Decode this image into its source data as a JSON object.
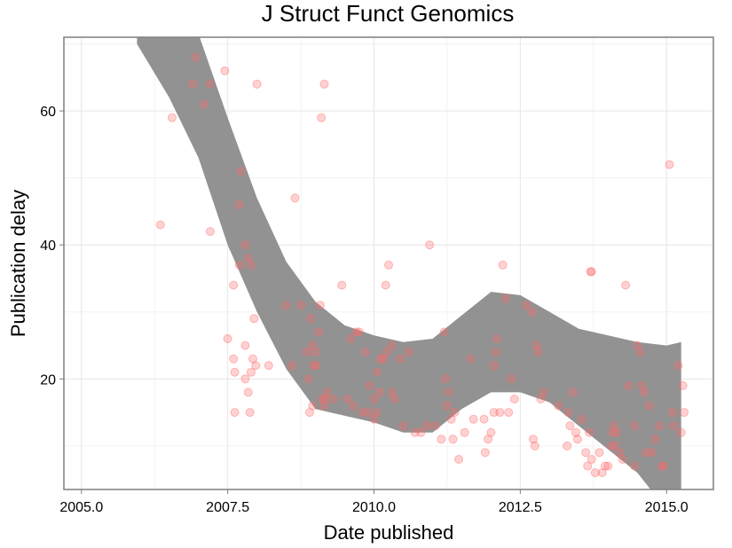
{
  "chart_data": {
    "type": "scatter",
    "title": "J Struct Funct Genomics",
    "xlabel": "Date published",
    "ylabel": "Publication delay",
    "xlim": [
      2004.7,
      2015.8
    ],
    "ylim": [
      3.5,
      71
    ],
    "x_ticks": [
      2005.0,
      2007.5,
      2010.0,
      2012.5,
      2015.0
    ],
    "x_tick_labels": [
      "2005.0",
      "2007.5",
      "2010.0",
      "2012.5",
      "2015.0"
    ],
    "y_ticks": [
      20,
      40,
      60
    ],
    "y_tick_labels": [
      "20",
      "40",
      "60"
    ],
    "grid": true,
    "legend": "none",
    "colors": {
      "points": "#ff6b6b",
      "band": "#8c8c8c",
      "grid": "#e6e6e6",
      "frame": "#7f7f7f"
    },
    "points": [
      [
        2006.35,
        43
      ],
      [
        2006.55,
        59
      ],
      [
        2006.9,
        64
      ],
      [
        2006.95,
        68
      ],
      [
        2007.1,
        61
      ],
      [
        2007.2,
        64
      ],
      [
        2007.2,
        42
      ],
      [
        2007.45,
        66
      ],
      [
        2007.5,
        26
      ],
      [
        2007.6,
        34
      ],
      [
        2007.6,
        23
      ],
      [
        2007.62,
        21
      ],
      [
        2007.62,
        15
      ],
      [
        2007.7,
        37
      ],
      [
        2007.72,
        51
      ],
      [
        2007.7,
        46
      ],
      [
        2007.8,
        40
      ],
      [
        2007.8,
        25
      ],
      [
        2007.8,
        20
      ],
      [
        2007.85,
        38
      ],
      [
        2007.85,
        18
      ],
      [
        2007.88,
        15
      ],
      [
        2007.9,
        37
      ],
      [
        2007.9,
        21
      ],
      [
        2007.93,
        23
      ],
      [
        2007.95,
        29
      ],
      [
        2007.98,
        22
      ],
      [
        2008.0,
        64
      ],
      [
        2008.2,
        22
      ],
      [
        2008.5,
        31
      ],
      [
        2008.6,
        22
      ],
      [
        2008.65,
        47
      ],
      [
        2008.75,
        31
      ],
      [
        2008.85,
        24
      ],
      [
        2008.88,
        20
      ],
      [
        2008.9,
        15
      ],
      [
        2008.92,
        29
      ],
      [
        2008.95,
        25
      ],
      [
        2008.95,
        16
      ],
      [
        2008.98,
        22
      ],
      [
        2009.0,
        24
      ],
      [
        2009.0,
        22
      ],
      [
        2009.05,
        27
      ],
      [
        2009.08,
        31
      ],
      [
        2009.1,
        59
      ],
      [
        2009.12,
        17
      ],
      [
        2009.15,
        17
      ],
      [
        2009.15,
        16
      ],
      [
        2009.2,
        18
      ],
      [
        2009.15,
        64
      ],
      [
        2009.3,
        17
      ],
      [
        2009.45,
        34
      ],
      [
        2009.55,
        17
      ],
      [
        2009.6,
        26
      ],
      [
        2009.65,
        16
      ],
      [
        2009.7,
        27
      ],
      [
        2009.75,
        27
      ],
      [
        2009.8,
        15
      ],
      [
        2009.85,
        24
      ],
      [
        2009.9,
        15
      ],
      [
        2009.92,
        19
      ],
      [
        2010.0,
        17
      ],
      [
        2010.0,
        14
      ],
      [
        2010.05,
        21
      ],
      [
        2010.05,
        15
      ],
      [
        2010.1,
        18
      ],
      [
        2010.12,
        23
      ],
      [
        2010.15,
        23
      ],
      [
        2010.2,
        34
      ],
      [
        2010.22,
        24
      ],
      [
        2010.25,
        37
      ],
      [
        2010.3,
        25
      ],
      [
        2010.3,
        18
      ],
      [
        2010.35,
        17
      ],
      [
        2010.45,
        23
      ],
      [
        2010.5,
        13
      ],
      [
        2010.6,
        24
      ],
      [
        2010.7,
        12
      ],
      [
        2010.8,
        12
      ],
      [
        2010.9,
        13
      ],
      [
        2010.95,
        40
      ],
      [
        2011.05,
        13
      ],
      [
        2011.15,
        11
      ],
      [
        2011.2,
        27
      ],
      [
        2011.22,
        20
      ],
      [
        2011.25,
        16
      ],
      [
        2011.28,
        18
      ],
      [
        2011.32,
        14
      ],
      [
        2011.35,
        11
      ],
      [
        2011.38,
        15
      ],
      [
        2011.45,
        8
      ],
      [
        2011.55,
        12
      ],
      [
        2011.65,
        23
      ],
      [
        2011.7,
        14
      ],
      [
        2011.88,
        14
      ],
      [
        2011.9,
        9
      ],
      [
        2011.95,
        11
      ],
      [
        2012.0,
        12
      ],
      [
        2012.05,
        15
      ],
      [
        2012.05,
        22
      ],
      [
        2012.08,
        24
      ],
      [
        2012.1,
        26
      ],
      [
        2012.15,
        15
      ],
      [
        2012.2,
        37
      ],
      [
        2012.25,
        32
      ],
      [
        2012.3,
        15
      ],
      [
        2012.35,
        20
      ],
      [
        2012.4,
        17
      ],
      [
        2012.6,
        31
      ],
      [
        2012.7,
        30
      ],
      [
        2012.72,
        11
      ],
      [
        2012.75,
        10
      ],
      [
        2012.78,
        25
      ],
      [
        2012.8,
        24
      ],
      [
        2012.85,
        17
      ],
      [
        2012.9,
        18
      ],
      [
        2013.15,
        16
      ],
      [
        2013.3,
        10
      ],
      [
        2013.32,
        15
      ],
      [
        2013.35,
        13
      ],
      [
        2013.4,
        18
      ],
      [
        2013.45,
        12
      ],
      [
        2013.48,
        11
      ],
      [
        2013.55,
        14
      ],
      [
        2013.62,
        9
      ],
      [
        2013.65,
        7
      ],
      [
        2013.68,
        12
      ],
      [
        2013.7,
        36
      ],
      [
        2013.72,
        36
      ],
      [
        2013.72,
        8
      ],
      [
        2013.78,
        6
      ],
      [
        2013.85,
        9
      ],
      [
        2013.9,
        6
      ],
      [
        2013.95,
        7
      ],
      [
        2014.0,
        7
      ],
      [
        2014.05,
        10
      ],
      [
        2014.08,
        12
      ],
      [
        2014.1,
        13
      ],
      [
        2014.12,
        10
      ],
      [
        2014.15,
        12
      ],
      [
        2014.2,
        9
      ],
      [
        2014.25,
        8
      ],
      [
        2014.3,
        34
      ],
      [
        2014.35,
        19
      ],
      [
        2014.45,
        13
      ],
      [
        2014.45,
        7
      ],
      [
        2014.5,
        25
      ],
      [
        2014.55,
        24
      ],
      [
        2014.58,
        19
      ],
      [
        2014.62,
        18
      ],
      [
        2014.65,
        9
      ],
      [
        2014.7,
        16
      ],
      [
        2014.75,
        9
      ],
      [
        2014.8,
        11
      ],
      [
        2014.88,
        13
      ],
      [
        2014.92,
        7
      ],
      [
        2014.95,
        7
      ],
      [
        2015.05,
        52
      ],
      [
        2015.1,
        15
      ],
      [
        2015.12,
        13
      ],
      [
        2015.2,
        22
      ],
      [
        2015.25,
        12
      ],
      [
        2015.28,
        19
      ],
      [
        2015.3,
        15
      ]
    ],
    "smooth_band": {
      "x": [
        2005.95,
        2006.5,
        2007.0,
        2007.5,
        2008.0,
        2008.5,
        2009.0,
        2009.5,
        2010.0,
        2010.5,
        2011.0,
        2011.5,
        2012.0,
        2012.5,
        2013.0,
        2013.5,
        2014.0,
        2014.5,
        2015.0,
        2015.25
      ],
      "upper": [
        88.0,
        80.0,
        71.5,
        59.0,
        47.0,
        37.5,
        31.5,
        28.0,
        26.5,
        25.5,
        26.0,
        29.5,
        33.0,
        32.5,
        30.0,
        27.5,
        26.5,
        25.5,
        25.0,
        25.5
      ],
      "lower": [
        70.0,
        62.0,
        53.0,
        40.0,
        30.0,
        21.5,
        15.5,
        14.5,
        13.5,
        12.0,
        12.0,
        15.5,
        18.0,
        18.0,
        16.5,
        13.0,
        9.5,
        6.0,
        0.5,
        -4.0
      ]
    }
  }
}
